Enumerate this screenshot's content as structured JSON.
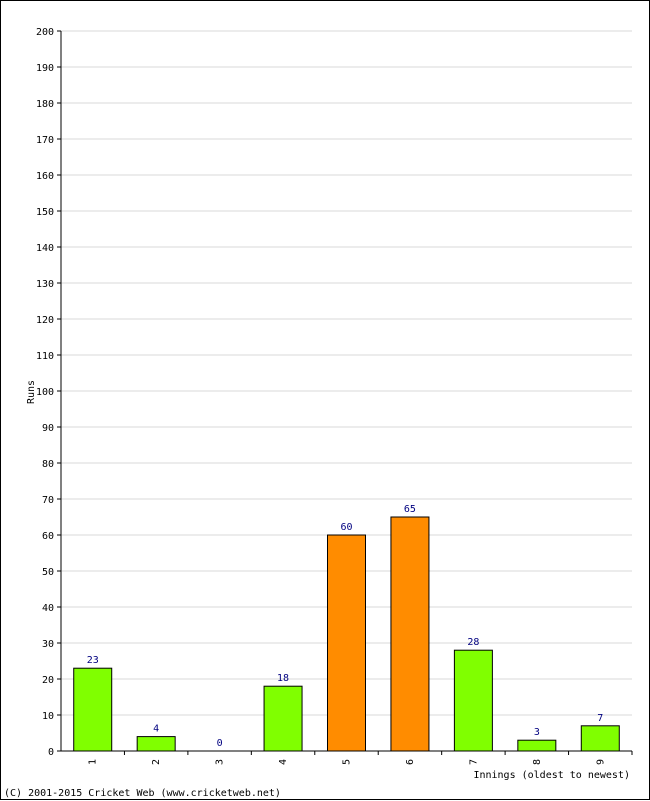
{
  "chart_data": {
    "type": "bar",
    "title": "",
    "xlabel": "Innings (oldest to newest)",
    "ylabel": "Runs",
    "categories": [
      "1",
      "2",
      "3",
      "4",
      "5",
      "6",
      "7",
      "8",
      "9"
    ],
    "values": [
      23,
      4,
      0,
      18,
      60,
      65,
      28,
      3,
      7
    ],
    "data_labels": [
      "23",
      "4",
      "0",
      "18",
      "60",
      "65",
      "28",
      "3",
      "7"
    ],
    "ylim": [
      0,
      200
    ],
    "ytick_step": 10,
    "grid": true,
    "legend": "none",
    "colors": {
      "fifty_plus": "#ff8c00",
      "below_fifty": "#80ff00",
      "bar_border": "#000000",
      "data_label": "#000080",
      "grid": "#d9d9d9"
    },
    "highlight_threshold": 50
  },
  "footer": {
    "copyright": "(C) 2001-2015 Cricket Web (www.cricketweb.net)"
  }
}
